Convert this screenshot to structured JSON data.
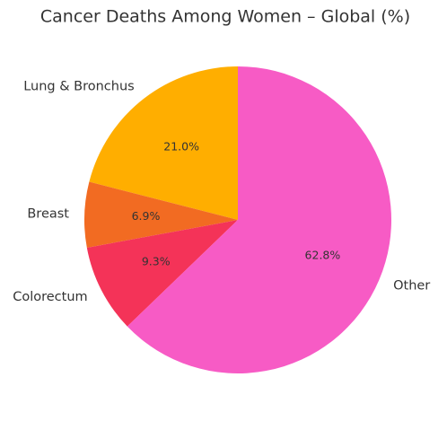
{
  "chart_data": {
    "type": "pie",
    "title": "Cancer Deaths Among Women – Global (%)",
    "categories": [
      "Lung & Bronchus",
      "Breast",
      "Colorectum",
      "Other"
    ],
    "values": [
      21.0,
      6.9,
      9.3,
      62.8
    ],
    "value_labels": [
      "21.0%",
      "6.9%",
      "9.3%",
      "62.8%"
    ],
    "colors": [
      "#ffae00",
      "#f26b22",
      "#f43358",
      "#f75bc5"
    ]
  }
}
